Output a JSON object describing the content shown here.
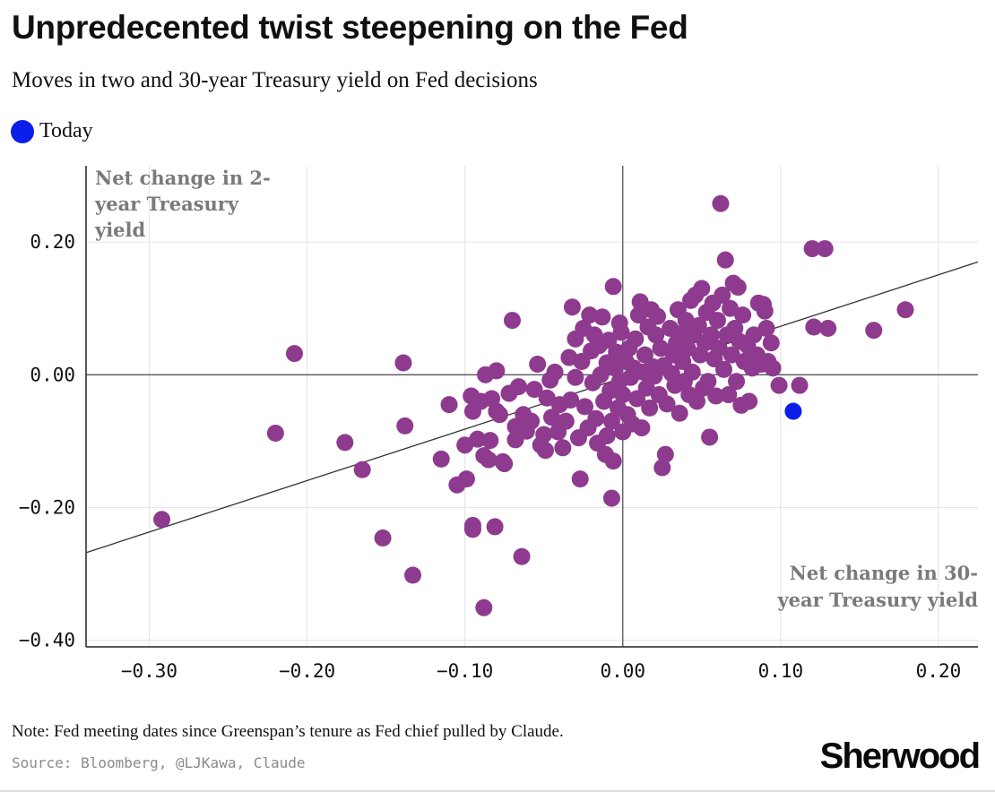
{
  "title": "Unpredecented twist steepening on the Fed",
  "subtitle": "Moves in two and 30-year Treasury yield on Fed decisions",
  "legend": {
    "today_label": "Today"
  },
  "note": "Note: Fed meeting dates since Greenspan’s tenure as Fed chief pulled by Claude.",
  "source": "Source: Bloomberg, @LJKawa, Claude",
  "brand": "Sherwood",
  "colors": {
    "points": "#8e3a8e",
    "today": "#0b1fe8",
    "grid": "#e6e6e6",
    "axis": "#555555",
    "trend": "#333333",
    "axis_label": "#7a7a7a"
  },
  "chart_data": {
    "type": "scatter",
    "ylabel": "Net change in 2-year Treasury yield",
    "xlabel": "Net change in 30-year Treasury yield",
    "xlim": [
      -0.34,
      0.225
    ],
    "ylim": [
      -0.41,
      0.315
    ],
    "x_ticks": [
      -0.3,
      -0.2,
      -0.1,
      0.0,
      0.1,
      0.2
    ],
    "x_tick_labels": [
      "−0.30",
      "−0.20",
      "−0.10",
      "0.00",
      "0.10",
      "0.20"
    ],
    "y_ticks": [
      0.2,
      0.0,
      -0.2,
      -0.4
    ],
    "y_tick_labels": [
      "0.20",
      "0.00",
      "−0.20",
      "−0.40"
    ],
    "grid": true,
    "legend_position": "top-left",
    "trendline": {
      "x": [
        -0.34,
        0.225
      ],
      "y": [
        -0.268,
        0.17
      ]
    },
    "highlight": {
      "name": "Today",
      "x": 0.108,
      "y": -0.055
    },
    "points": [
      [
        -0.292,
        -0.218
      ],
      [
        -0.22,
        -0.088
      ],
      [
        -0.208,
        0.032
      ],
      [
        -0.176,
        -0.102
      ],
      [
        -0.165,
        -0.143
      ],
      [
        -0.152,
        -0.246
      ],
      [
        -0.139,
        0.018
      ],
      [
        -0.138,
        -0.077
      ],
      [
        -0.133,
        -0.302
      ],
      [
        -0.115,
        -0.127
      ],
      [
        -0.11,
        -0.045
      ],
      [
        -0.105,
        -0.166
      ],
      [
        -0.1,
        -0.106
      ],
      [
        -0.099,
        -0.157
      ],
      [
        -0.096,
        -0.032
      ],
      [
        -0.095,
        -0.055
      ],
      [
        -0.095,
        -0.227
      ],
      [
        -0.095,
        -0.233
      ],
      [
        -0.092,
        -0.097
      ],
      [
        -0.09,
        -0.04
      ],
      [
        -0.088,
        -0.122
      ],
      [
        -0.088,
        -0.351
      ],
      [
        -0.087,
        0.0
      ],
      [
        -0.085,
        -0.128
      ],
      [
        -0.084,
        -0.099
      ],
      [
        -0.083,
        -0.036
      ],
      [
        -0.081,
        -0.229
      ],
      [
        -0.08,
        0.006
      ],
      [
        -0.08,
        -0.055
      ],
      [
        -0.078,
        -0.06
      ],
      [
        -0.076,
        -0.131
      ],
      [
        -0.075,
        -0.134
      ],
      [
        -0.072,
        -0.028
      ],
      [
        -0.07,
        0.082
      ],
      [
        -0.068,
        -0.078
      ],
      [
        -0.068,
        -0.098
      ],
      [
        -0.066,
        -0.018
      ],
      [
        -0.064,
        -0.274
      ],
      [
        -0.063,
        -0.06
      ],
      [
        -0.061,
        -0.085
      ],
      [
        -0.058,
        -0.07
      ],
      [
        -0.056,
        -0.022
      ],
      [
        -0.054,
        0.016
      ],
      [
        -0.052,
        -0.106
      ],
      [
        -0.05,
        -0.09
      ],
      [
        -0.049,
        -0.114
      ],
      [
        -0.048,
        -0.035
      ],
      [
        -0.046,
        -0.008
      ],
      [
        -0.045,
        -0.064
      ],
      [
        -0.043,
        0.004
      ],
      [
        -0.041,
        -0.086
      ],
      [
        -0.04,
        -0.045
      ],
      [
        -0.038,
        -0.11
      ],
      [
        -0.036,
        -0.07
      ],
      [
        -0.034,
        0.026
      ],
      [
        -0.033,
        -0.038
      ],
      [
        -0.032,
        0.102
      ],
      [
        -0.03,
        0.054
      ],
      [
        -0.03,
        -0.004
      ],
      [
        -0.028,
        -0.095
      ],
      [
        -0.027,
        -0.157
      ],
      [
        -0.026,
        0.02
      ],
      [
        -0.025,
        0.07
      ],
      [
        -0.024,
        -0.048
      ],
      [
        -0.022,
        -0.08
      ],
      [
        -0.021,
        0.09
      ],
      [
        -0.02,
        0.036
      ],
      [
        -0.019,
        -0.012
      ],
      [
        -0.018,
        0.06
      ],
      [
        -0.017,
        -0.066
      ],
      [
        -0.016,
        -0.103
      ],
      [
        -0.015,
        0.044
      ],
      [
        -0.014,
        0.0
      ],
      [
        -0.013,
        0.087
      ],
      [
        -0.012,
        -0.04
      ],
      [
        -0.011,
        -0.12
      ],
      [
        -0.01,
        0.018
      ],
      [
        -0.01,
        -0.092
      ],
      [
        -0.009,
        0.052
      ],
      [
        -0.008,
        -0.024
      ],
      [
        -0.007,
        -0.07
      ],
      [
        -0.006,
        -0.13
      ],
      [
        -0.006,
        0.133
      ],
      [
        -0.005,
        0.01
      ],
      [
        -0.004,
        0.034
      ],
      [
        -0.003,
        -0.05
      ],
      [
        -0.002,
        -0.01
      ],
      [
        -0.001,
        0.064
      ],
      [
        0.0,
        -0.03
      ],
      [
        0.0,
        -0.086
      ],
      [
        -0.007,
        -0.186
      ],
      [
        -0.002,
        0.078
      ],
      [
        0.002,
        0.02
      ],
      [
        0.003,
        -0.06
      ],
      [
        0.004,
        0.04
      ],
      [
        0.005,
        -0.004
      ],
      [
        0.006,
        -0.074
      ],
      [
        0.007,
        0.01
      ],
      [
        0.008,
        0.054
      ],
      [
        0.009,
        -0.036
      ],
      [
        0.01,
        0.09
      ],
      [
        0.011,
        0.11
      ],
      [
        0.012,
        -0.08
      ],
      [
        0.013,
        0.004
      ],
      [
        0.014,
        0.03
      ],
      [
        0.015,
        -0.02
      ],
      [
        0.016,
        0.072
      ],
      [
        0.017,
        -0.05
      ],
      [
        0.018,
        0.098
      ],
      [
        0.019,
        0.012
      ],
      [
        0.02,
        -0.002
      ],
      [
        0.021,
        0.06
      ],
      [
        0.022,
        0.088
      ],
      [
        0.023,
        -0.03
      ],
      [
        0.024,
        0.04
      ],
      [
        0.025,
        -0.14
      ],
      [
        0.026,
        0.014
      ],
      [
        0.027,
        -0.12
      ],
      [
        0.028,
        -0.044
      ],
      [
        0.03,
        0.07
      ],
      [
        0.031,
        0.002
      ],
      [
        0.032,
        0.03
      ],
      [
        0.033,
        -0.016
      ],
      [
        0.034,
        0.048
      ],
      [
        0.035,
        0.098
      ],
      [
        0.036,
        -0.058
      ],
      [
        0.037,
        0.062
      ],
      [
        0.038,
        0.02
      ],
      [
        0.039,
        -0.01
      ],
      [
        0.04,
        0.082
      ],
      [
        0.041,
        0.04
      ],
      [
        0.042,
        -0.03
      ],
      [
        0.043,
        0.112
      ],
      [
        0.044,
        0.004
      ],
      [
        0.045,
        0.06
      ],
      [
        0.046,
        0.12
      ],
      [
        0.047,
        -0.04
      ],
      [
        0.048,
        0.074
      ],
      [
        0.049,
        0.03
      ],
      [
        0.05,
        0.13
      ],
      [
        0.051,
        -0.02
      ],
      [
        0.052,
        0.048
      ],
      [
        0.053,
        0.094
      ],
      [
        0.054,
        -0.01
      ],
      [
        0.055,
        -0.094
      ],
      [
        0.056,
        0.06
      ],
      [
        0.057,
        0.108
      ],
      [
        0.058,
        0.024
      ],
      [
        0.059,
        -0.032
      ],
      [
        0.06,
        0.082
      ],
      [
        0.061,
        0.04
      ],
      [
        0.062,
        0.258
      ],
      [
        0.063,
        0.12
      ],
      [
        0.064,
        0.008
      ],
      [
        0.065,
        0.173
      ],
      [
        0.066,
        0.06
      ],
      [
        0.067,
        -0.03
      ],
      [
        0.068,
        0.1
      ],
      [
        0.069,
        0.03
      ],
      [
        0.07,
        0.138
      ],
      [
        0.071,
        0.07
      ],
      [
        0.072,
        -0.01
      ],
      [
        0.073,
        0.132
      ],
      [
        0.074,
        0.05
      ],
      [
        0.075,
        -0.046
      ],
      [
        0.076,
        0.09
      ],
      [
        0.077,
        0.02
      ],
      [
        0.079,
        0.044
      ],
      [
        0.08,
        -0.04
      ],
      [
        0.082,
        0.01
      ],
      [
        0.083,
        0.06
      ],
      [
        0.085,
        0.03
      ],
      [
        0.086,
        0.108
      ],
      [
        0.088,
        0.016
      ],
      [
        0.089,
        0.106
      ],
      [
        0.09,
        0.096
      ],
      [
        0.091,
        0.07
      ],
      [
        0.092,
        0.02
      ],
      [
        0.094,
        0.048
      ],
      [
        0.095,
        0.01
      ],
      [
        0.099,
        -0.016
      ],
      [
        0.112,
        -0.016
      ],
      [
        0.12,
        0.19
      ],
      [
        0.121,
        0.072
      ],
      [
        0.128,
        0.19
      ],
      [
        0.13,
        0.07
      ],
      [
        0.159,
        0.067
      ],
      [
        0.179,
        0.098
      ]
    ]
  }
}
